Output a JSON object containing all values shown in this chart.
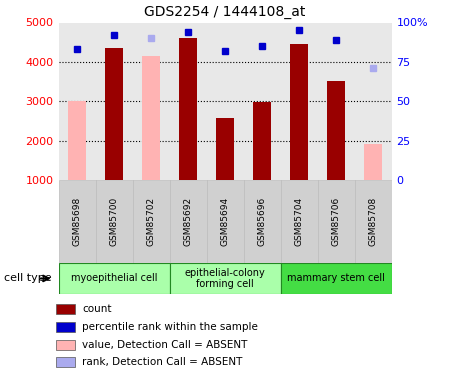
{
  "title": "GDS2254 / 1444108_at",
  "samples": [
    "GSM85698",
    "GSM85700",
    "GSM85702",
    "GSM85692",
    "GSM85694",
    "GSM85696",
    "GSM85704",
    "GSM85706",
    "GSM85708"
  ],
  "count_values": [
    null,
    4350,
    null,
    4600,
    2580,
    2980,
    4450,
    3520,
    null
  ],
  "absent_values": [
    3000,
    null,
    4150,
    null,
    null,
    null,
    null,
    null,
    1920
  ],
  "percentile_rank": [
    83,
    92,
    null,
    94,
    82,
    85,
    95,
    89,
    null
  ],
  "absent_rank": [
    null,
    null,
    90,
    null,
    null,
    null,
    null,
    null,
    71
  ],
  "bar_color_present": "#990000",
  "bar_color_absent": "#ffb3b3",
  "dot_color_present": "#0000cc",
  "dot_color_absent": "#aaaaee",
  "ylim_left": [
    1000,
    5000
  ],
  "ylim_right": [
    0,
    100
  ],
  "right_ticks": [
    0,
    25,
    50,
    75,
    100
  ],
  "right_tick_labels": [
    "0",
    "25",
    "50",
    "75",
    "100%"
  ],
  "left_ticks": [
    1000,
    2000,
    3000,
    4000,
    5000
  ],
  "grid_lines": [
    2000,
    3000,
    4000
  ],
  "cell_type_groups": [
    {
      "start": 0,
      "end": 2,
      "label": "myoepithelial cell",
      "color": "#aaffaa"
    },
    {
      "start": 3,
      "end": 5,
      "label": "epithelial-colony\nforming cell",
      "color": "#aaffaa"
    },
    {
      "start": 6,
      "end": 8,
      "label": "mammary stem cell",
      "color": "#44dd44"
    }
  ],
  "legend_items": [
    {
      "label": "count",
      "color": "#990000"
    },
    {
      "label": "percentile rank within the sample",
      "color": "#0000cc"
    },
    {
      "label": "value, Detection Call = ABSENT",
      "color": "#ffb3b3"
    },
    {
      "label": "rank, Detection Call = ABSENT",
      "color": "#aaaaee"
    }
  ],
  "cell_type_label": "cell type",
  "plot_bg_color": "#e8e8e8",
  "sample_bg_color": "#d0d0d0",
  "bar_width": 0.5
}
